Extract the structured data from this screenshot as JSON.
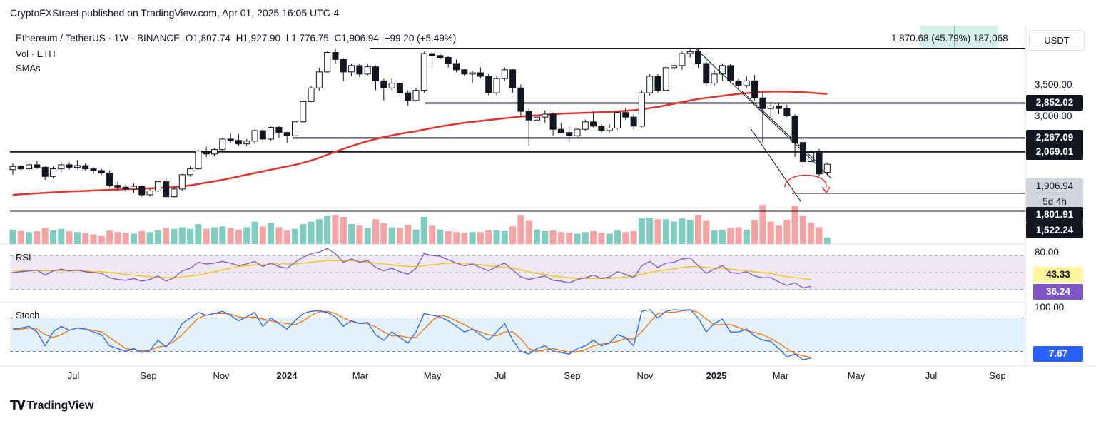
{
  "publisher": "CryptoFXStreet published on TradingView.com, Apr 01, 2025 16:05 UTC-4",
  "symbol": {
    "name": "Ethereum / TetherUS · 1W · BINANCE",
    "open": "O1,807.74",
    "high": "H1,927.90",
    "low": "L1,776.75",
    "close": "C1,906.94",
    "change": "+99.20 (+5.49%)"
  },
  "indicators": {
    "vol": "Vol · ETH",
    "smas": "SMAs"
  },
  "measure_label": "1,870.68 (45.79%) 187,068",
  "quote_currency": "USDT",
  "price_axis": {
    "ticks": [
      "3,500.00",
      "3,000.00"
    ]
  },
  "price_tags": [
    {
      "label": "2,852.02",
      "bg": "#131722",
      "fg": "#ffffff"
    },
    {
      "label": "2,267.09",
      "bg": "#131722",
      "fg": "#ffffff"
    },
    {
      "label": "2,069.01",
      "bg": "#131722",
      "fg": "#ffffff"
    },
    {
      "label": "1,906.94",
      "bg": "#d1d4dc",
      "fg": "#131722"
    },
    {
      "label": "5d 4h",
      "bg": "#d1d4dc",
      "fg": "#131722"
    },
    {
      "label": "1,801.91",
      "bg": "#131722",
      "fg": "#ffffff"
    },
    {
      "label": "1,522.24",
      "bg": "#131722",
      "fg": "#ffffff"
    }
  ],
  "rsi": {
    "label": "RSI",
    "upper": "80.00",
    "value": "43.33",
    "value2": "36.24"
  },
  "stoch": {
    "label": "Stoch",
    "upper": "100.00",
    "value": "7.67"
  },
  "x_axis": [
    "Jul",
    "Sep",
    "Nov",
    "2024",
    "Mar",
    "May",
    "Jul",
    "Sep",
    "Nov",
    "2025",
    "Mar",
    "May",
    "Jul",
    "Sep"
  ],
  "brand": "TradingView",
  "colors": {
    "up": "#ffffff",
    "down": "#131722",
    "sma": "#e5332e",
    "vol_up": "#7fcdc0",
    "vol_down": "#f5a3a3",
    "rsi": "#7e57c2",
    "rsi_ma": "#f5c400",
    "stoch_k": "#2962ff",
    "stoch_d": "#ff6d00",
    "band": "#ede7f6",
    "stoch_band": "#e3f2fd"
  },
  "chart_data": {
    "type": "candlestick",
    "y_range": [
      1400,
      4200
    ],
    "levels": [
      2852.02,
      2267.09,
      2069.01,
      1801.91,
      1522.24,
      4100
    ],
    "candles": [
      [
        1840,
        1920,
        1780,
        1880
      ],
      [
        1880,
        1900,
        1820,
        1850
      ],
      [
        1850,
        1920,
        1830,
        1900
      ],
      [
        1900,
        1950,
        1850,
        1870
      ],
      [
        1870,
        1880,
        1720,
        1760
      ],
      [
        1760,
        1880,
        1740,
        1850
      ],
      [
        1850,
        1940,
        1800,
        1900
      ],
      [
        1900,
        1930,
        1840,
        1870
      ],
      [
        1870,
        1960,
        1850,
        1890
      ],
      [
        1890,
        1920,
        1830,
        1850
      ],
      [
        1850,
        1870,
        1790,
        1830
      ],
      [
        1830,
        1850,
        1780,
        1800
      ],
      [
        1800,
        1830,
        1640,
        1660
      ],
      [
        1660,
        1700,
        1610,
        1640
      ],
      [
        1640,
        1670,
        1590,
        1620
      ],
      [
        1620,
        1680,
        1580,
        1650
      ],
      [
        1650,
        1660,
        1540,
        1560
      ],
      [
        1560,
        1620,
        1540,
        1600
      ],
      [
        1600,
        1720,
        1570,
        1700
      ],
      [
        1700,
        1740,
        1520,
        1540
      ],
      [
        1540,
        1640,
        1530,
        1620
      ],
      [
        1620,
        1790,
        1600,
        1780
      ],
      [
        1780,
        1880,
        1760,
        1850
      ],
      [
        1850,
        2100,
        1840,
        2080
      ],
      [
        2080,
        2140,
        2000,
        2040
      ],
      [
        2040,
        2120,
        2010,
        2100
      ],
      [
        2100,
        2270,
        2080,
        2250
      ],
      [
        2250,
        2340,
        2200,
        2230
      ],
      [
        2230,
        2330,
        2150,
        2180
      ],
      [
        2180,
        2250,
        2150,
        2220
      ],
      [
        2220,
        2400,
        2180,
        2380
      ],
      [
        2380,
        2420,
        2200,
        2250
      ],
      [
        2250,
        2450,
        2230,
        2430
      ],
      [
        2430,
        2450,
        2270,
        2350
      ],
      [
        2350,
        2360,
        2200,
        2300
      ],
      [
        2300,
        2550,
        2290,
        2520
      ],
      [
        2520,
        2900,
        2500,
        2880
      ],
      [
        2880,
        3200,
        2870,
        3150
      ],
      [
        3150,
        3600,
        3100,
        3500
      ],
      [
        3500,
        4000,
        3480,
        3980
      ],
      [
        3980,
        4090,
        3700,
        3800
      ],
      [
        3800,
        3830,
        3300,
        3500
      ],
      [
        3500,
        3700,
        3400,
        3650
      ],
      [
        3650,
        3700,
        3380,
        3450
      ],
      [
        3450,
        3700,
        3420,
        3620
      ],
      [
        3620,
        3650,
        3100,
        3300
      ],
      [
        3300,
        3340,
        2900,
        3150
      ],
      [
        3150,
        3350,
        3100,
        3250
      ],
      [
        3250,
        3250,
        2950,
        3050
      ],
      [
        3050,
        3100,
        2800,
        2900
      ],
      [
        2900,
        3150,
        2880,
        3100
      ],
      [
        3100,
        4000,
        3050,
        3950
      ],
      [
        3950,
        3980,
        3700,
        3900
      ],
      [
        3900,
        3960,
        3800,
        3850
      ],
      [
        3850,
        3880,
        3600,
        3700
      ],
      [
        3700,
        3800,
        3500,
        3550
      ],
      [
        3550,
        3580,
        3400,
        3450
      ],
      [
        3450,
        3520,
        3250,
        3480
      ],
      [
        3480,
        3600,
        3350,
        3400
      ],
      [
        3400,
        3450,
        3000,
        3050
      ],
      [
        3050,
        3400,
        3000,
        3350
      ],
      [
        3350,
        3600,
        3300,
        3550
      ],
      [
        3550,
        3580,
        3050,
        3150
      ],
      [
        3150,
        3220,
        2600,
        2700
      ],
      [
        2700,
        2750,
        2150,
        2550
      ],
      [
        2550,
        2700,
        2470,
        2600
      ],
      [
        2600,
        2720,
        2500,
        2650
      ],
      [
        2650,
        2680,
        2300,
        2400
      ],
      [
        2400,
        2500,
        2350,
        2350
      ],
      [
        2350,
        2450,
        2200,
        2300
      ],
      [
        2300,
        2420,
        2280,
        2400
      ],
      [
        2400,
        2560,
        2380,
        2520
      ],
      [
        2520,
        2700,
        2430,
        2450
      ],
      [
        2450,
        2480,
        2350,
        2380
      ],
      [
        2380,
        2480,
        2350,
        2420
      ],
      [
        2420,
        2700,
        2400,
        2680
      ],
      [
        2680,
        2760,
        2550,
        2600
      ],
      [
        2600,
        2650,
        2400,
        2450
      ],
      [
        2450,
        3100,
        2430,
        3050
      ],
      [
        3050,
        3450,
        3000,
        3400
      ],
      [
        3400,
        3450,
        3050,
        3100
      ],
      [
        3100,
        3650,
        3080,
        3600
      ],
      [
        3600,
        3720,
        3450,
        3650
      ],
      [
        3650,
        4000,
        3550,
        3950
      ],
      [
        3950,
        4107,
        3850,
        4000
      ],
      [
        4000,
        4100,
        3600,
        3700
      ],
      [
        3700,
        3750,
        3200,
        3250
      ],
      [
        3250,
        3550,
        3200,
        3450
      ],
      [
        3450,
        3700,
        3300,
        3650
      ],
      [
        3650,
        3700,
        3250,
        3300
      ],
      [
        3300,
        3350,
        3150,
        3200
      ],
      [
        3200,
        3400,
        3150,
        3300
      ],
      [
        3300,
        3430,
        2900,
        2950
      ],
      [
        2950,
        3050,
        2200,
        2750
      ],
      [
        2750,
        2870,
        2600,
        2800
      ],
      [
        2800,
        2860,
        2650,
        2750
      ],
      [
        2750,
        2820,
        2600,
        2620
      ],
      [
        2620,
        2650,
        2000,
        2200
      ],
      [
        2200,
        2250,
        1860,
        1940
      ],
      [
        1940,
        2100,
        1920,
        2060
      ],
      [
        2060,
        2110,
        1760,
        1790
      ],
      [
        1807.74,
        1927.9,
        1776.75,
        1906.94
      ]
    ],
    "volume": [
      [
        1,
        0.36
      ],
      [
        0,
        0.33
      ],
      [
        1,
        0.3
      ],
      [
        0,
        0.32
      ],
      [
        0,
        0.4
      ],
      [
        1,
        0.34
      ],
      [
        1,
        0.38
      ],
      [
        0,
        0.32
      ],
      [
        1,
        0.3
      ],
      [
        0,
        0.27
      ],
      [
        0,
        0.24
      ],
      [
        0,
        0.2
      ],
      [
        0,
        0.34
      ],
      [
        0,
        0.3
      ],
      [
        0,
        0.28
      ],
      [
        1,
        0.26
      ],
      [
        0,
        0.32
      ],
      [
        1,
        0.3
      ],
      [
        1,
        0.34
      ],
      [
        0,
        0.4
      ],
      [
        1,
        0.38
      ],
      [
        1,
        0.42
      ],
      [
        1,
        0.38
      ],
      [
        1,
        0.5
      ],
      [
        0,
        0.38
      ],
      [
        1,
        0.42
      ],
      [
        1,
        0.44
      ],
      [
        0,
        0.4
      ],
      [
        0,
        0.36
      ],
      [
        1,
        0.42
      ],
      [
        1,
        0.56
      ],
      [
        0,
        0.44
      ],
      [
        1,
        0.52
      ],
      [
        0,
        0.42
      ],
      [
        0,
        0.34
      ],
      [
        1,
        0.38
      ],
      [
        1,
        0.5
      ],
      [
        1,
        0.56
      ],
      [
        1,
        0.62
      ],
      [
        1,
        0.7
      ],
      [
        0,
        0.72
      ],
      [
        0,
        0.68
      ],
      [
        1,
        0.5
      ],
      [
        0,
        0.46
      ],
      [
        1,
        0.4
      ],
      [
        0,
        0.62
      ],
      [
        0,
        0.52
      ],
      [
        1,
        0.42
      ],
      [
        0,
        0.4
      ],
      [
        0,
        0.48
      ],
      [
        1,
        0.36
      ],
      [
        1,
        0.68
      ],
      [
        0,
        0.46
      ],
      [
        1,
        0.36
      ],
      [
        0,
        0.32
      ],
      [
        0,
        0.3
      ],
      [
        0,
        0.28
      ],
      [
        1,
        0.3
      ],
      [
        0,
        0.3
      ],
      [
        0,
        0.34
      ],
      [
        1,
        0.34
      ],
      [
        1,
        0.32
      ],
      [
        0,
        0.44
      ],
      [
        0,
        0.72
      ],
      [
        0,
        0.58
      ],
      [
        1,
        0.36
      ],
      [
        1,
        0.32
      ],
      [
        0,
        0.34
      ],
      [
        0,
        0.3
      ],
      [
        0,
        0.28
      ],
      [
        1,
        0.26
      ],
      [
        1,
        0.3
      ],
      [
        0,
        0.32
      ],
      [
        0,
        0.28
      ],
      [
        1,
        0.26
      ],
      [
        1,
        0.34
      ],
      [
        0,
        0.3
      ],
      [
        0,
        0.32
      ],
      [
        1,
        0.64
      ],
      [
        1,
        0.66
      ],
      [
        0,
        0.62
      ],
      [
        1,
        0.62
      ],
      [
        1,
        0.56
      ],
      [
        1,
        0.64
      ],
      [
        1,
        0.6
      ],
      [
        0,
        0.72
      ],
      [
        0,
        0.58
      ],
      [
        1,
        0.34
      ],
      [
        1,
        0.34
      ],
      [
        0,
        0.4
      ],
      [
        0,
        0.42
      ],
      [
        1,
        0.36
      ],
      [
        0,
        0.6
      ],
      [
        0,
        0.98
      ],
      [
        0,
        0.56
      ],
      [
        0,
        0.46
      ],
      [
        0,
        0.6
      ],
      [
        0,
        0.96
      ],
      [
        0,
        0.7
      ],
      [
        0,
        0.54
      ],
      [
        0,
        0.42
      ],
      [
        1,
        0.16
      ]
    ],
    "sma": [
      1560,
      1565,
      1570,
      1575,
      1580,
      1585,
      1590,
      1595,
      1598,
      1600,
      1605,
      1608,
      1612,
      1615,
      1618,
      1620,
      1624,
      1628,
      1632,
      1636,
      1640,
      1648,
      1660,
      1675,
      1690,
      1705,
      1720,
      1740,
      1760,
      1780,
      1800,
      1820,
      1840,
      1860,
      1880,
      1900,
      1925,
      1955,
      1990,
      2030,
      2070,
      2110,
      2150,
      2185,
      2220,
      2250,
      2280,
      2305,
      2330,
      2350,
      2370,
      2395,
      2420,
      2445,
      2465,
      2485,
      2505,
      2520,
      2535,
      2550,
      2565,
      2580,
      2595,
      2610,
      2620,
      2630,
      2640,
      2650,
      2660,
      2665,
      2670,
      2675,
      2680,
      2685,
      2690,
      2700,
      2710,
      2720,
      2735,
      2760,
      2780,
      2810,
      2840,
      2870,
      2900,
      2930,
      2950,
      2970,
      2990,
      3010,
      3030,
      3045,
      3060,
      3070,
      3075,
      3078,
      3076,
      3070,
      3062,
      3052,
      3040,
      3028
    ],
    "rsi": [
      50,
      51,
      52,
      53,
      47,
      52,
      54,
      52,
      53,
      51,
      50,
      49,
      44,
      42,
      41,
      43,
      40,
      42,
      46,
      40,
      44,
      52,
      55,
      62,
      60,
      61,
      63,
      61,
      58,
      60,
      63,
      57,
      61,
      57,
      55,
      62,
      68,
      72,
      74,
      78,
      72,
      62,
      66,
      62,
      64,
      56,
      52,
      55,
      51,
      48,
      55,
      72,
      70,
      69,
      65,
      61,
      58,
      60,
      56,
      52,
      57,
      61,
      53,
      45,
      42,
      44,
      46,
      41,
      40,
      38,
      42,
      44,
      47,
      43,
      45,
      51,
      48,
      44,
      58,
      63,
      56,
      61,
      62,
      66,
      67,
      58,
      49,
      54,
      58,
      50,
      49,
      51,
      46,
      44,
      44,
      39,
      35,
      38,
      32,
      34
    ],
    "rsi_ma": [
      52,
      52,
      52,
      52,
      52,
      52,
      52,
      52,
      52,
      52,
      51,
      51,
      50,
      49,
      48,
      47,
      46,
      45,
      45,
      44,
      44,
      45,
      46,
      47,
      49,
      51,
      53,
      55,
      57,
      58,
      59,
      59,
      60,
      60,
      60,
      60,
      61,
      62,
      63,
      64,
      64,
      64,
      64,
      63,
      62,
      61,
      60,
      59,
      58,
      57,
      57,
      58,
      59,
      60,
      61,
      61,
      61,
      60,
      59,
      58,
      57,
      56,
      55,
      53,
      51,
      49,
      48,
      46,
      45,
      44,
      43,
      43,
      43,
      43,
      43,
      44,
      45,
      46,
      48,
      50,
      52,
      53,
      54,
      56,
      57,
      57,
      56,
      55,
      55,
      54,
      53,
      52,
      51,
      50,
      49,
      47,
      45,
      44,
      43,
      42
    ],
    "stoch_k": [
      60,
      62,
      65,
      55,
      30,
      55,
      65,
      58,
      62,
      60,
      55,
      50,
      30,
      25,
      20,
      25,
      18,
      22,
      40,
      28,
      45,
      70,
      80,
      90,
      85,
      88,
      92,
      85,
      75,
      82,
      90,
      65,
      80,
      70,
      60,
      75,
      88,
      92,
      93,
      90,
      82,
      65,
      75,
      70,
      72,
      50,
      40,
      55,
      45,
      35,
      55,
      88,
      85,
      82,
      75,
      65,
      55,
      60,
      50,
      40,
      55,
      70,
      40,
      20,
      15,
      25,
      30,
      20,
      18,
      15,
      25,
      30,
      40,
      30,
      35,
      50,
      45,
      30,
      92,
      95,
      80,
      92,
      95,
      94,
      95,
      80,
      55,
      70,
      78,
      55,
      55,
      60,
      48,
      40,
      38,
      25,
      10,
      15,
      5,
      8
    ],
    "stoch_d": [
      58,
      60,
      62,
      60,
      50,
      45,
      50,
      58,
      62,
      60,
      58,
      55,
      45,
      35,
      25,
      23,
      21,
      22,
      28,
      30,
      38,
      50,
      65,
      80,
      85,
      88,
      88,
      87,
      82,
      80,
      82,
      78,
      75,
      72,
      70,
      68,
      75,
      85,
      91,
      92,
      88,
      80,
      74,
      70,
      70,
      64,
      55,
      48,
      48,
      45,
      45,
      60,
      75,
      85,
      82,
      75,
      68,
      60,
      55,
      50,
      48,
      55,
      55,
      43,
      25,
      20,
      23,
      25,
      22,
      18,
      19,
      23,
      30,
      33,
      35,
      38,
      43,
      42,
      55,
      72,
      88,
      90,
      90,
      93,
      94,
      90,
      78,
      68,
      68,
      68,
      63,
      57,
      54,
      50,
      43,
      35,
      25,
      16,
      12,
      9
    ]
  }
}
